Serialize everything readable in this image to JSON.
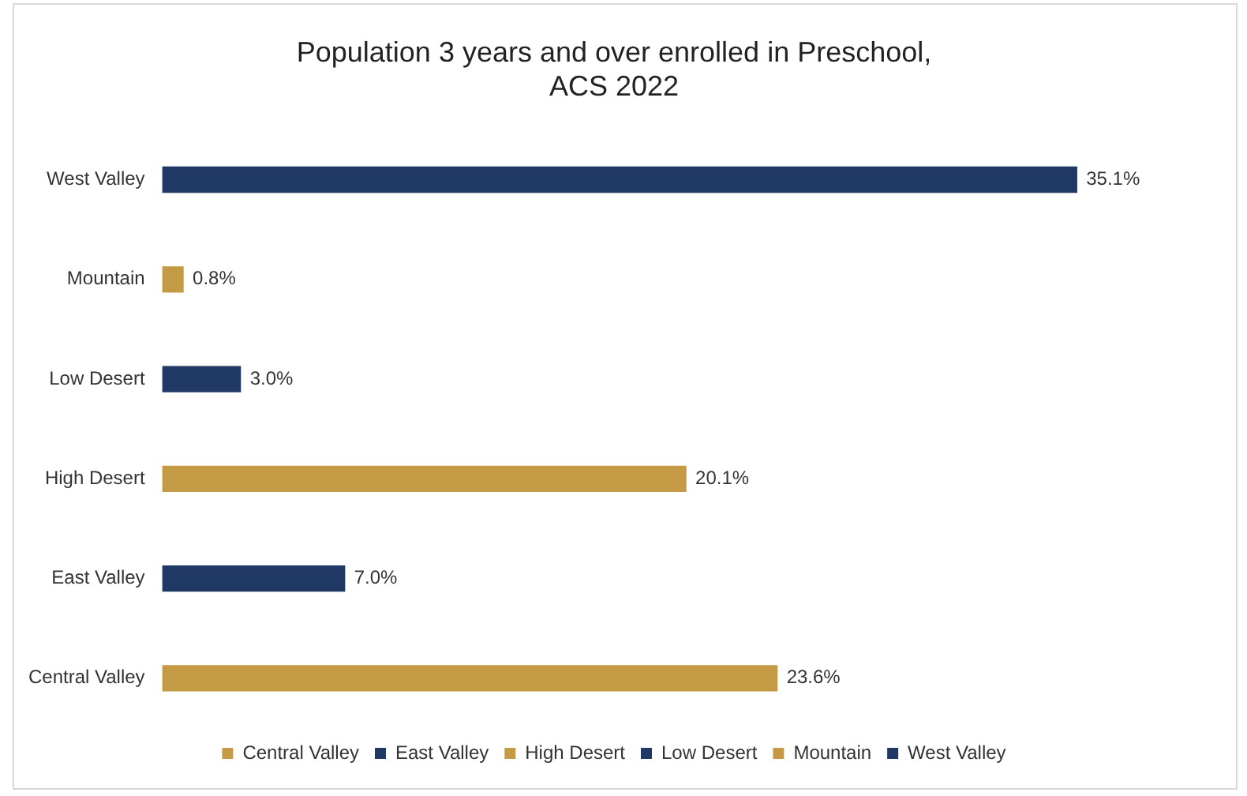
{
  "chart_data": {
    "type": "bar",
    "orientation": "horizontal",
    "stacked": true,
    "title": "Population 3 years and over enrolled in Preschool,\nACS 2022",
    "categories": [
      "West Valley",
      "Mountain",
      "Low Desert",
      "High Desert",
      "East Valley",
      "Central Valley"
    ],
    "series": [
      {
        "name": "Central Valley",
        "color": "#c49a45",
        "values": [
          null,
          null,
          null,
          null,
          null,
          23.6
        ],
        "value_labels": [
          null,
          null,
          null,
          null,
          null,
          "23.6%"
        ]
      },
      {
        "name": "East Valley",
        "color": "#203864",
        "values": [
          null,
          null,
          null,
          null,
          7.0,
          null
        ],
        "value_labels": [
          null,
          null,
          null,
          null,
          "7.0%",
          null
        ]
      },
      {
        "name": "High Desert",
        "color": "#c49a45",
        "values": [
          null,
          null,
          null,
          20.1,
          null,
          null
        ],
        "value_labels": [
          null,
          null,
          null,
          "20.1%",
          null,
          null
        ]
      },
      {
        "name": "Low Desert",
        "color": "#203864",
        "values": [
          null,
          null,
          3.0,
          null,
          null,
          null
        ],
        "value_labels": [
          null,
          null,
          "3.0%",
          null,
          null,
          null
        ]
      },
      {
        "name": "Mountain",
        "color": "#c49a45",
        "values": [
          null,
          0.8,
          null,
          null,
          null,
          null
        ],
        "value_labels": [
          null,
          "0.8%",
          null,
          null,
          null,
          null
        ]
      },
      {
        "name": "West Valley",
        "color": "#203864",
        "values": [
          35.1,
          null,
          null,
          null,
          null,
          null
        ],
        "value_labels": [
          "35.1%",
          null,
          null,
          null,
          null,
          null
        ]
      }
    ],
    "grid": false,
    "legend": "bottom"
  }
}
